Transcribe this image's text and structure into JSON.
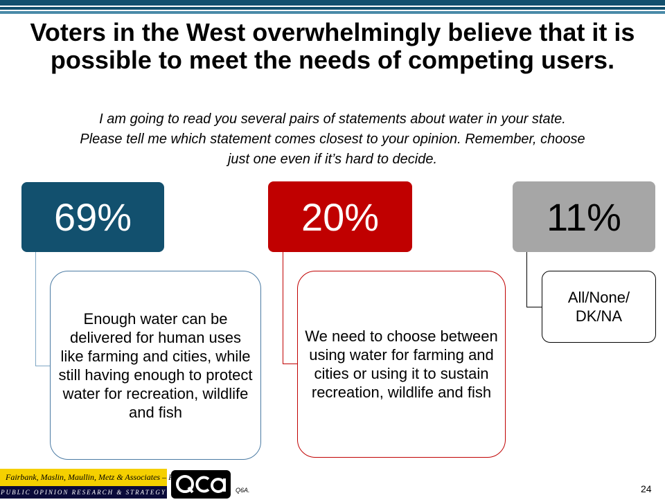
{
  "slide": {
    "title": "Voters in the West overwhelmingly believe that it is possible to meet the needs of competing users.",
    "subtitle": "I am going to read you several pairs of statements about water in your state.  Please tell me which statement comes closest to your opinion.  Remember, choose just one even if it’s hard to decide.",
    "page_number": "24",
    "question_code": "Q6A."
  },
  "responses": [
    {
      "percent": "69%",
      "text": "Enough water can be delivered for human uses like farming and cities, while still having enough to protect water for recreation, wildlife and fish",
      "color": "#12506e"
    },
    {
      "percent": "20%",
      "text": "We need to choose between using water for farming and cities or using it to sustain recreation, wildlife and fish",
      "color": "#c00000"
    },
    {
      "percent": "11%",
      "text": "All/None/ DK/NA",
      "color": "#a6a6a6"
    }
  ],
  "footer": {
    "firm_name": "Fairbank, Maslin, Maullin, Metz & Associates – FM3",
    "firm_tagline": "PUBLIC OPINION RESEARCH & STRATEGY",
    "partner_logo_text": "QCA"
  },
  "colors": {
    "top_bar": "#12506e",
    "firm_yellow": "#f5d000",
    "firm_navy": "#0a0a3a"
  }
}
